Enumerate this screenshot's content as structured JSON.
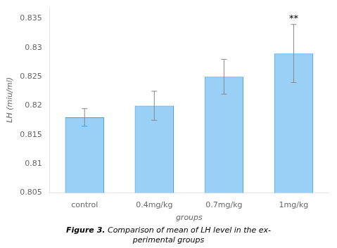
{
  "chart_data": {
    "type": "bar",
    "title": "Figure 3.",
    "subtitle": [
      "Comparison of mean of LH level in the ex-",
      "perimental groups"
    ],
    "xlabel": "groups",
    "ylabel": "LH (miu/ml)",
    "categories": [
      "control",
      "0.4mg/kg",
      "0.7mg/kg",
      "1mg/kg"
    ],
    "values": [
      0.818,
      0.82,
      0.825,
      0.829
    ],
    "errors": [
      0.0015,
      0.0025,
      0.003,
      0.005
    ],
    "ylim": [
      0.805,
      0.837
    ],
    "yticks": [
      0.805,
      0.81,
      0.815,
      0.82,
      0.825,
      0.83,
      0.835
    ],
    "grid": false,
    "annotations": [
      {
        "text": "**",
        "category": "1mg/kg"
      }
    ]
  }
}
